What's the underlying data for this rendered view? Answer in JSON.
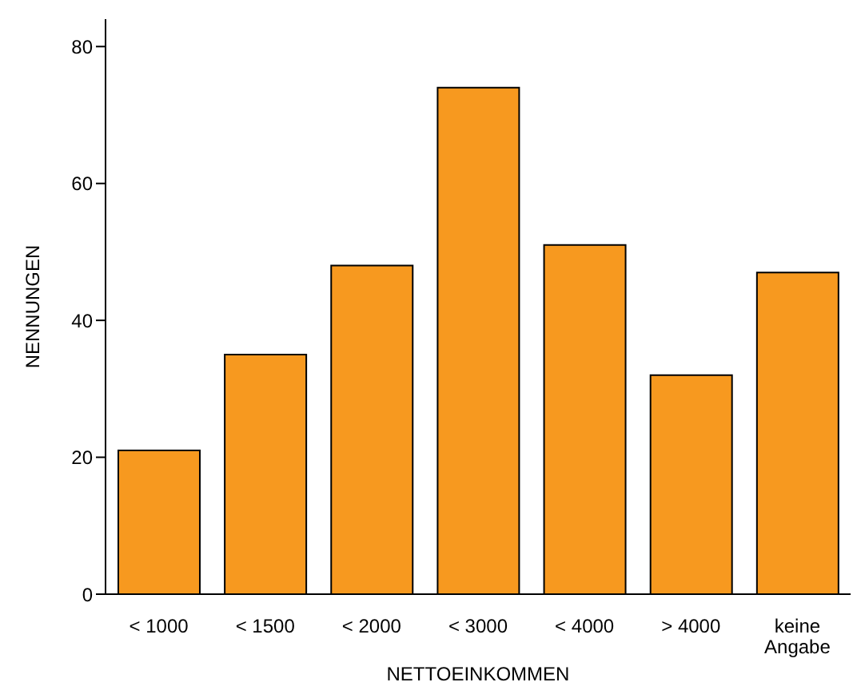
{
  "chart_data": {
    "type": "bar",
    "xlabel": "NETTOEINKOMMEN",
    "ylabel": "NENNUNGEN",
    "categories": [
      "< 1000",
      "< 1500",
      "< 2000",
      "< 3000",
      "< 4000",
      "> 4000",
      "keine Angabe"
    ],
    "values": [
      21,
      35,
      48,
      74,
      51,
      32,
      47
    ],
    "color": "#f7991f",
    "ylim": [
      0,
      84
    ],
    "yticks": [
      0,
      20,
      40,
      60,
      80
    ],
    "grid": false,
    "legend": false
  }
}
